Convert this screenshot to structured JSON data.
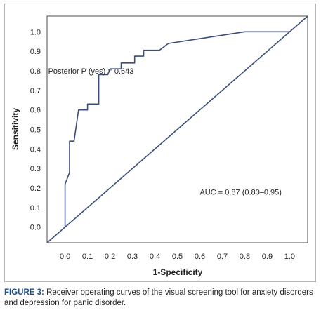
{
  "chart_data": {
    "type": "line",
    "xlabel": "1-Specificity",
    "ylabel": "Sensitivity",
    "xlim": [
      -0.08,
      1.08
    ],
    "ylim": [
      -0.08,
      1.08
    ],
    "xticks": [
      0.0,
      0.1,
      0.2,
      0.3,
      0.4,
      0.5,
      0.6,
      0.7,
      0.8,
      0.9,
      1.0
    ],
    "xtick_labels": [
      "0.0",
      "0.1",
      "0.2",
      "0.3",
      "0.4",
      "0.5",
      "0.6",
      "0.7",
      "0.8",
      "0.9",
      "1.0"
    ],
    "yticks": [
      0.0,
      0.1,
      0.2,
      0.3,
      0.4,
      0.5,
      0.6,
      0.7,
      0.8,
      0.9,
      1.0
    ],
    "ytick_labels": [
      "0.0",
      "0.1",
      "0.2",
      "0.3",
      "0.4",
      "0.5",
      "0.6",
      "0.7",
      "0.8",
      "0.9",
      "1.0"
    ],
    "grid": false,
    "series": [
      {
        "x": [
          0.0,
          0.0,
          0.02,
          0.02,
          0.04,
          0.06,
          0.1,
          0.1,
          0.14,
          0.15,
          0.15,
          0.19,
          0.2,
          0.25,
          0.25,
          0.31,
          0.31,
          0.35,
          0.35,
          0.42,
          0.46,
          0.8,
          1.0
        ],
        "y": [
          0.0,
          0.22,
          0.28,
          0.44,
          0.44,
          0.6,
          0.6,
          0.63,
          0.63,
          0.63,
          0.78,
          0.78,
          0.81,
          0.81,
          0.84,
          0.84,
          0.875,
          0.875,
          0.905,
          0.905,
          0.94,
          1.0,
          1.0
        ],
        "color": "#3d4f7c"
      },
      {
        "x": [
          -0.08,
          1.08
        ],
        "y": [
          -0.08,
          1.08
        ],
        "color": "#3d4f7c"
      }
    ],
    "annotations": [
      {
        "text": "Posterior P (yes) = 0.643",
        "x": -0.075,
        "y": 0.8
      },
      {
        "text": "AUC = 0.87 (0.80–0.95)",
        "x": 0.6,
        "y": 0.18
      }
    ]
  },
  "caption": {
    "label": "FIGURE 3:",
    "text": " Receiver operating curves of the visual screening tool for anxiety disorders and depression for panic disorder."
  }
}
